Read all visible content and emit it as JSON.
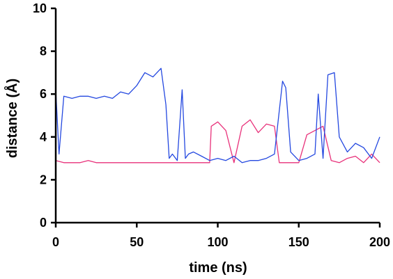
{
  "chart_data": {
    "type": "line",
    "title": "",
    "xlabel": "time (ns)",
    "ylabel": "distance (Å)",
    "xlim": [
      0,
      200
    ],
    "ylim": [
      0,
      10
    ],
    "xticks": [
      "0",
      "50",
      "100",
      "150",
      "200"
    ],
    "yticks": [
      "0",
      "2",
      "4",
      "6",
      "8",
      "10"
    ],
    "grid": false,
    "legend": "none",
    "series": [
      {
        "color": "#e8317a",
        "x": [
          0,
          5,
          10,
          15,
          20,
          25,
          30,
          35,
          40,
          45,
          50,
          55,
          60,
          65,
          70,
          75,
          80,
          85,
          90,
          95,
          96,
          100,
          105,
          110,
          115,
          120,
          125,
          130,
          135,
          138,
          140,
          145,
          150,
          155,
          160,
          165,
          170,
          175,
          180,
          185,
          190,
          195,
          200
        ],
        "y": [
          2.9,
          2.8,
          2.8,
          2.8,
          2.9,
          2.8,
          2.8,
          2.8,
          2.8,
          2.8,
          2.8,
          2.8,
          2.8,
          2.8,
          2.8,
          2.8,
          2.8,
          2.8,
          2.8,
          2.8,
          4.5,
          4.7,
          4.3,
          2.8,
          4.5,
          4.8,
          4.2,
          4.6,
          4.5,
          2.8,
          2.8,
          2.8,
          2.8,
          4.1,
          4.3,
          4.5,
          2.9,
          2.8,
          3.0,
          3.1,
          2.8,
          3.2,
          2.8
        ]
      },
      {
        "color": "#2448e0",
        "x": [
          0,
          2,
          5,
          10,
          15,
          20,
          25,
          30,
          35,
          40,
          45,
          50,
          55,
          60,
          65,
          68,
          70,
          72,
          75,
          78,
          80,
          82,
          85,
          90,
          95,
          100,
          105,
          110,
          115,
          120,
          125,
          130,
          135,
          140,
          142,
          145,
          150,
          155,
          160,
          162,
          165,
          168,
          172,
          175,
          180,
          185,
          190,
          195,
          200
        ],
        "y": [
          6.2,
          3.2,
          5.9,
          5.8,
          5.9,
          5.9,
          5.8,
          5.9,
          5.8,
          6.1,
          6.0,
          6.4,
          7.0,
          6.8,
          7.2,
          5.5,
          3.0,
          3.2,
          2.9,
          6.2,
          3.0,
          3.2,
          3.3,
          3.1,
          2.9,
          3.0,
          2.9,
          3.1,
          2.8,
          2.9,
          2.9,
          3.0,
          3.2,
          6.6,
          6.3,
          3.3,
          2.9,
          3.0,
          3.2,
          6.0,
          3.0,
          6.9,
          7.0,
          4.0,
          3.3,
          3.7,
          3.5,
          3.0,
          4.0
        ]
      }
    ]
  }
}
